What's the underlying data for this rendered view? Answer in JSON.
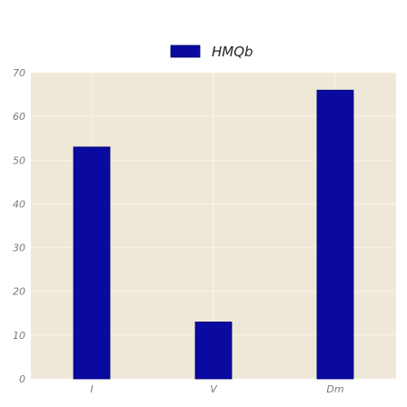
{
  "chart_data": {
    "type": "bar",
    "categories": [
      "I",
      "V",
      "Dm"
    ],
    "series": [
      {
        "name": "HMQb",
        "values": [
          53,
          13,
          66
        ]
      }
    ],
    "ylim": [
      0,
      70
    ],
    "yticks": [
      0,
      10,
      20,
      30,
      40,
      50,
      60,
      70
    ],
    "grid": true,
    "legend_position": "top-center",
    "colors": {
      "bar": "#0a0aa0",
      "bar_edge": "#00006e",
      "plot_background": "#efe8d9",
      "grid": "#f8f4ec",
      "tick_text": "#7a7a7a"
    }
  }
}
